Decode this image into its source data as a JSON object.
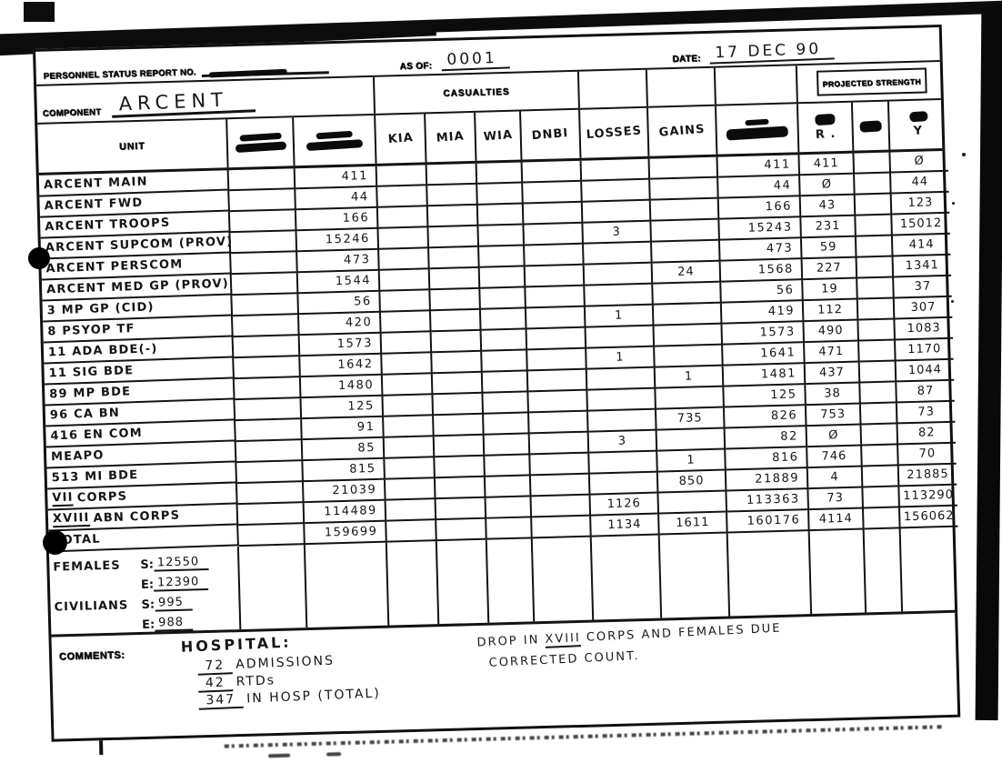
{
  "header": {
    "report_no_label": "PERSONNEL STATUS REPORT NO.",
    "as_of_label": "AS OF:",
    "as_of_value": "0001",
    "date_label": "DATE:",
    "date_value": "17 DEC 90"
  },
  "component": {
    "label": "COMPONENT",
    "value": "ARCENT"
  },
  "banners": {
    "casualties": "CASUALTIES",
    "projected_strength": "PROJECTED STRENGTH"
  },
  "columns": {
    "unit": "UNIT",
    "kia": "KIA",
    "mia": "MIA",
    "wia": "WIA",
    "dnbi": "DNBI",
    "losses": "LOSSES",
    "gains": "GAINS",
    "h24_annotation": "R .",
    "h72_annotation": "Y"
  },
  "rows": [
    {
      "unit": "ARCENT MAIN",
      "start": "411",
      "end": "411",
      "h24": "411",
      "h72": "Ø"
    },
    {
      "unit": "ARCENT FWD",
      "start": "44",
      "end": "44",
      "h24": "Ø",
      "h72": "44"
    },
    {
      "unit": "ARCENT TROOPS",
      "start": "166",
      "end": "166",
      "h24": "43",
      "h72": "123"
    },
    {
      "unit": "ARCENT SUPCOM (PROV)",
      "start": "15246",
      "losses": "3",
      "end": "15243",
      "h24": "231",
      "h72": "15012"
    },
    {
      "unit": "ARCENT PERSCOM",
      "start": "473",
      "end": "473",
      "h24": "59",
      "h72": "414"
    },
    {
      "unit": "ARCENT MED GP (PROV)",
      "start": "1544",
      "gains": "24",
      "end": "1568",
      "h24": "227",
      "h72": "1341"
    },
    {
      "unit": "3 MP GP (CID)",
      "start": "56",
      "end": "56",
      "h24": "19",
      "h72": "37"
    },
    {
      "unit": "8 PSYOP TF",
      "start": "420",
      "losses": "1",
      "end": "419",
      "h24": "112",
      "h72": "307"
    },
    {
      "unit": "11 ADA BDE(-)",
      "start": "1573",
      "end": "1573",
      "h24": "490",
      "h72": "1083"
    },
    {
      "unit": "11 SIG BDE",
      "start": "1642",
      "losses": "1",
      "end": "1641",
      "h24": "471",
      "h72": "1170"
    },
    {
      "unit": "89 MP BDE",
      "start": "1480",
      "gains": "1",
      "end": "1481",
      "h24": "437",
      "h72": "1044"
    },
    {
      "unit": "96 CA BN",
      "start": "125",
      "end": "125",
      "h24": "38",
      "h72": "87"
    },
    {
      "unit": "416 EN COM",
      "start": "91",
      "gains": "735",
      "end": "826",
      "h24": "753",
      "h72": "73"
    },
    {
      "unit": "MEAPO",
      "start": "85",
      "losses": "3",
      "end": "82",
      "h24": "Ø",
      "h72": "82"
    },
    {
      "unit": "513 MI BDE",
      "start": "815",
      "gains": "1",
      "end": "816",
      "h24": "746",
      "h72": "70"
    },
    {
      "unit_u": "VII",
      "unit": " CORPS",
      "start": "21039",
      "gains": "850",
      "end": "21889",
      "h24": "4",
      "h72": "21885"
    },
    {
      "unit_u": "XVIII",
      "unit": " ABN CORPS",
      "start": "114489",
      "losses": "1126",
      "end": "113363",
      "h24": "73",
      "h72": "113290"
    },
    {
      "unit": "TOTAL",
      "start": "159699",
      "losses": "1134",
      "gains": "1611",
      "end": "160176",
      "h24": "4114",
      "h72": "156062"
    }
  ],
  "females_civilians": {
    "females_label": "FEMALES",
    "females_s_label": "S:",
    "females_s_value": "12550",
    "females_e_label": "E:",
    "females_e_value": "12390",
    "civilians_label": "CIVILIANS",
    "civilians_s_label": "S:",
    "civilians_s_value": "995",
    "civilians_e_label": "E:",
    "civilians_e_value": "988"
  },
  "comments": {
    "label": "COMMENTS:",
    "hospital_title": "HOSPITAL:",
    "items": [
      {
        "num": "72",
        "text": "ADMISSIONS"
      },
      {
        "num": "42",
        "text": "RTDs"
      },
      {
        "num": "347",
        "text": "IN HOSP (TOTAL)"
      }
    ],
    "note_pre": "DROP IN",
    "note_corps": "XVIII",
    "note_post": "CORPS AND FEMALES DUE",
    "note_line2": "CORRECTED COUNT."
  }
}
